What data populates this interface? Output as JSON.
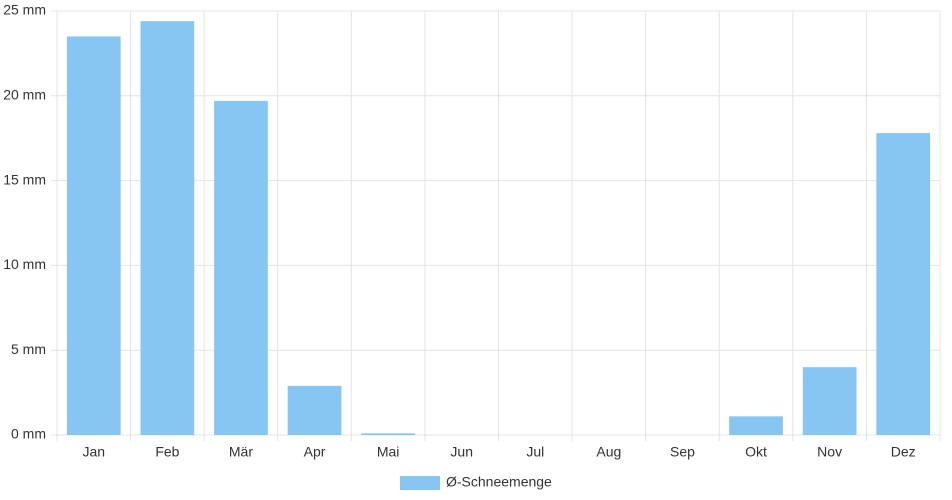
{
  "chart_data": {
    "type": "bar",
    "categories": [
      "Jan",
      "Feb",
      "Mär",
      "Apr",
      "Mai",
      "Jun",
      "Jul",
      "Aug",
      "Sep",
      "Okt",
      "Nov",
      "Dez"
    ],
    "series": [
      {
        "name": "Ø-Schneemenge",
        "color": "#87c6f2",
        "values": [
          23.5,
          24.4,
          19.7,
          2.9,
          0.1,
          0,
          0,
          0,
          0,
          1.1,
          4.0,
          17.8
        ]
      }
    ],
    "ylim": [
      0,
      25
    ],
    "yticks": [
      {
        "value": 0,
        "label": "0 mm"
      },
      {
        "value": 5,
        "label": "5 mm"
      },
      {
        "value": 10,
        "label": "10 mm"
      },
      {
        "value": 15,
        "label": "15 mm"
      },
      {
        "value": 20,
        "label": "20 mm"
      },
      {
        "value": 25,
        "label": "25 mm"
      }
    ],
    "grid": true,
    "legend": "bottom"
  }
}
